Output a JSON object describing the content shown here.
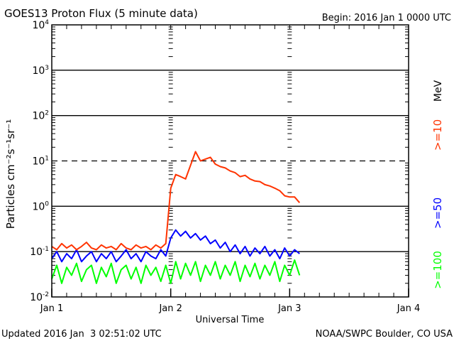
{
  "chart_data": {
    "type": "line",
    "title": "GOES13 Proton Flux (5 minute data)",
    "begin_label": "Begin: 2016 Jan 1 0000 UTC",
    "xlabel": "Universal Time",
    "ylabel": "Particles cm⁻²s⁻¹sr⁻¹",
    "yscale": "log",
    "ylim": [
      0.01,
      10000
    ],
    "xlim_hours": [
      0,
      72
    ],
    "x_ticks": [
      {
        "hour": 0,
        "label": "Jan 1"
      },
      {
        "hour": 24,
        "label": "Jan 2"
      },
      {
        "hour": 48,
        "label": "Jan 3"
      },
      {
        "hour": 72,
        "label": "Jan 4"
      }
    ],
    "y_ticks": [
      {
        "value": 0.01,
        "base": "10",
        "exp": "-2"
      },
      {
        "value": 0.1,
        "base": "10",
        "exp": "-1"
      },
      {
        "value": 1,
        "base": "10",
        "exp": "0"
      },
      {
        "value": 10,
        "base": "10",
        "exp": "1"
      },
      {
        "value": 100,
        "base": "10",
        "exp": "2"
      },
      {
        "value": 1000,
        "base": "10",
        "exp": "3"
      },
      {
        "value": 10000,
        "base": "10",
        "exp": "4"
      }
    ],
    "threshold_dashed": 10,
    "x_hours_start": 0,
    "x_hours_step": 1,
    "series": [
      {
        "name": ">=10",
        "color": "#ff3300",
        "values": [
          0.13,
          0.11,
          0.15,
          0.12,
          0.14,
          0.11,
          0.13,
          0.16,
          0.12,
          0.11,
          0.14,
          0.12,
          0.13,
          0.11,
          0.15,
          0.12,
          0.11,
          0.14,
          0.12,
          0.13,
          0.11,
          0.14,
          0.12,
          0.15,
          2.5,
          5,
          4.5,
          4,
          8,
          16,
          10,
          11,
          12,
          8.5,
          7.5,
          7,
          6,
          5.5,
          4.5,
          4.8,
          4,
          3.6,
          3.5,
          3,
          2.8,
          2.5,
          2.2,
          1.7,
          1.6,
          1.6,
          1.2
        ]
      },
      {
        "name": ">=50",
        "color": "#0000ff",
        "values": [
          0.07,
          0.1,
          0.06,
          0.09,
          0.07,
          0.11,
          0.06,
          0.08,
          0.1,
          0.06,
          0.09,
          0.07,
          0.1,
          0.06,
          0.08,
          0.11,
          0.07,
          0.09,
          0.06,
          0.1,
          0.08,
          0.07,
          0.11,
          0.08,
          0.2,
          0.3,
          0.22,
          0.28,
          0.2,
          0.25,
          0.18,
          0.22,
          0.15,
          0.18,
          0.12,
          0.16,
          0.1,
          0.14,
          0.09,
          0.13,
          0.08,
          0.12,
          0.09,
          0.13,
          0.08,
          0.11,
          0.07,
          0.12,
          0.08,
          0.11,
          0.09
        ]
      },
      {
        "name": ">=100",
        "color": "#00ff00",
        "values": [
          0.025,
          0.05,
          0.02,
          0.045,
          0.03,
          0.055,
          0.022,
          0.04,
          0.05,
          0.02,
          0.045,
          0.028,
          0.055,
          0.02,
          0.04,
          0.05,
          0.025,
          0.045,
          0.02,
          0.05,
          0.03,
          0.045,
          0.022,
          0.05,
          0.02,
          0.06,
          0.025,
          0.055,
          0.03,
          0.06,
          0.022,
          0.05,
          0.03,
          0.06,
          0.025,
          0.05,
          0.03,
          0.06,
          0.022,
          0.05,
          0.028,
          0.055,
          0.025,
          0.05,
          0.03,
          0.06,
          0.022,
          0.05,
          0.03,
          0.065,
          0.03
        ]
      }
    ],
    "unit_label": "MeV"
  },
  "footer": {
    "updated": "Updated 2016 Jan  3 02:51:02 UTC",
    "source": "NOAA/SWPC Boulder, CO USA"
  }
}
